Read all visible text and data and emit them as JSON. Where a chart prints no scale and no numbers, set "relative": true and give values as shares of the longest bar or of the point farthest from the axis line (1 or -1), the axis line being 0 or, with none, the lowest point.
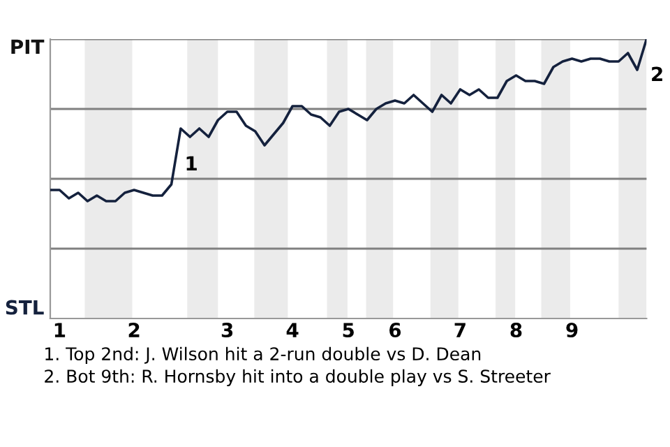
{
  "chart_data": {
    "type": "line",
    "relative": true,
    "categories": [
      null,
      "1",
      null,
      null,
      null,
      null,
      null,
      null,
      null,
      "2",
      null,
      null,
      null,
      null,
      null,
      null,
      null,
      null,
      null,
      "3",
      null,
      null,
      null,
      null,
      null,
      null,
      "4",
      null,
      null,
      null,
      null,
      null,
      "5",
      null,
      null,
      null,
      null,
      "6",
      null,
      null,
      null,
      null,
      null,
      null,
      "7",
      null,
      null,
      null,
      null,
      null,
      "8",
      null,
      null,
      null,
      null,
      null,
      "9",
      null,
      null,
      null,
      null,
      null,
      null,
      null,
      null
    ],
    "series": [
      {
        "color": "#14213d",
        "values": [
          0.46,
          0.46,
          0.43,
          0.45,
          0.42,
          0.44,
          0.42,
          0.42,
          0.45,
          0.46,
          0.45,
          0.44,
          0.44,
          0.48,
          0.68,
          0.65,
          0.68,
          0.65,
          0.71,
          0.74,
          0.74,
          0.69,
          0.67,
          0.62,
          0.66,
          0.7,
          0.76,
          0.76,
          0.73,
          0.72,
          0.69,
          0.74,
          0.75,
          0.73,
          0.71,
          0.75,
          0.77,
          0.78,
          0.77,
          0.8,
          0.77,
          0.74,
          0.8,
          0.77,
          0.82,
          0.8,
          0.82,
          0.79,
          0.79,
          0.85,
          0.87,
          0.85,
          0.85,
          0.84,
          0.9,
          0.92,
          0.93,
          0.92,
          0.93,
          0.93,
          0.92,
          0.92,
          0.95,
          0.89,
          1.0
        ]
      }
    ],
    "ref_lines": [
      {
        "axis": "y",
        "value": 0.25,
        "color": "#808080"
      },
      {
        "axis": "y",
        "value": 0.5,
        "color": "#808080"
      },
      {
        "axis": "y",
        "value": 0.75,
        "color": "#808080"
      },
      {
        "axis": "y",
        "value": 1,
        "color": "#808080"
      }
    ],
    "annotations": [
      "PIT",
      "STL",
      "1. Top 2nd: J. Wilson hit a 2-run double vs D. Dean",
      "2. Bot 9th: R. Hornsby hit into a double play vs S. Streeter",
      "1",
      "2"
    ]
  }
}
